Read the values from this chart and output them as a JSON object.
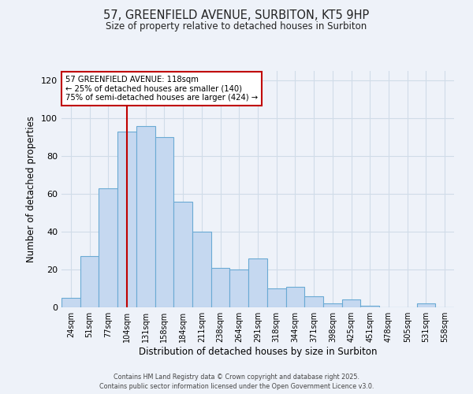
{
  "title": "57, GREENFIELD AVENUE, SURBITON, KT5 9HP",
  "subtitle": "Size of property relative to detached houses in Surbiton",
  "xlabel": "Distribution of detached houses by size in Surbiton",
  "ylabel": "Number of detached properties",
  "bar_labels": [
    "24sqm",
    "51sqm",
    "77sqm",
    "104sqm",
    "131sqm",
    "158sqm",
    "184sqm",
    "211sqm",
    "238sqm",
    "264sqm",
    "291sqm",
    "318sqm",
    "344sqm",
    "371sqm",
    "398sqm",
    "425sqm",
    "451sqm",
    "478sqm",
    "505sqm",
    "531sqm",
    "558sqm"
  ],
  "bar_values": [
    5,
    27,
    63,
    93,
    96,
    90,
    56,
    40,
    21,
    20,
    26,
    10,
    11,
    6,
    2,
    4,
    1,
    0,
    0,
    2,
    0
  ],
  "bar_color": "#c5d8f0",
  "bar_edge_color": "#6aaad4",
  "ylim": [
    0,
    125
  ],
  "yticks": [
    0,
    20,
    40,
    60,
    80,
    100,
    120
  ],
  "annotation_text_line1": "57 GREENFIELD AVENUE: 118sqm",
  "annotation_text_line2": "← 25% of detached houses are smaller (140)",
  "annotation_text_line3": "75% of semi-detached houses are larger (424) →",
  "annotation_box_color": "#ffffff",
  "annotation_box_edge_color": "#c00000",
  "footer_line1": "Contains HM Land Registry data © Crown copyright and database right 2025.",
  "footer_line2": "Contains public sector information licensed under the Open Government Licence v3.0.",
  "background_color": "#eef2f9",
  "grid_color": "#d0dce8",
  "property_line_color": "#c00000"
}
